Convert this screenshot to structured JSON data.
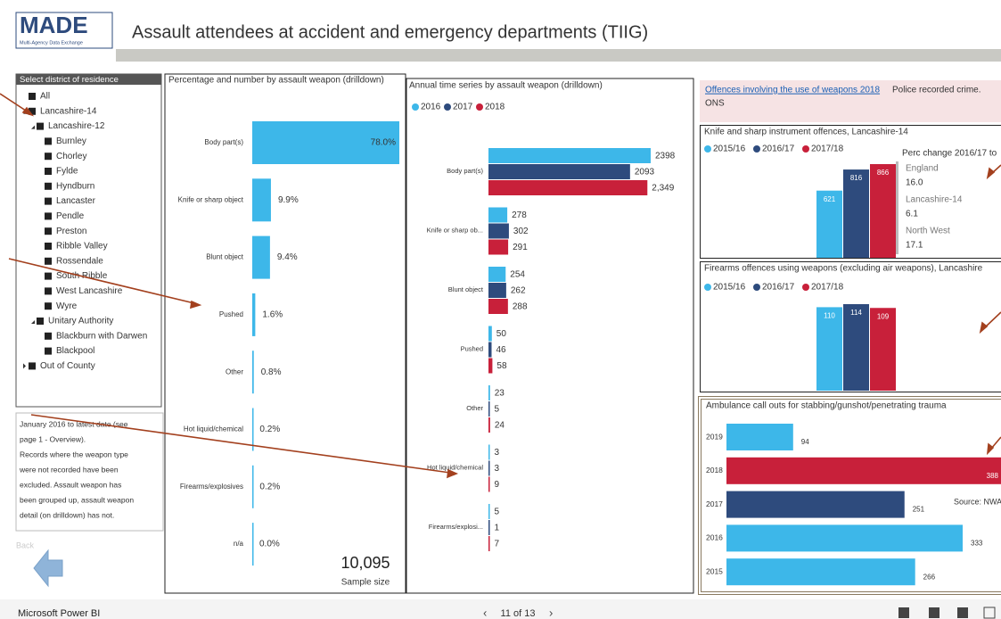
{
  "header": {
    "logo": "MADE",
    "logo_subtitle": "Multi-Agency Data Exchange",
    "title": "Assault attendees at accident and emergency departments (TIIG)"
  },
  "slicer": {
    "title": "Select district of residence",
    "items": [
      "All",
      "Lancashire-14",
      "Lancashire-12",
      "Burnley",
      "Chorley",
      "Fylde",
      "Hyndburn",
      "Lancaster",
      "Pendle",
      "Preston",
      "Ribble Valley",
      "Rossendale",
      "South Ribble",
      "West Lancashire",
      "Wyre",
      "Unitary Authority",
      "Blackburn with Darwen",
      "Blackpool",
      "Out of County"
    ]
  },
  "note": [
    "January 2016 to latest date (see",
    "page 1 - Overview).",
    "Records where the weapon type",
    "were not recorded have been",
    "excluded. Assault weapon  has",
    "been grouped up, assault weapon",
    "detail (on drilldown) has not."
  ],
  "back": "Back",
  "weapon_share": {
    "type": "bar",
    "title": "Percentage and number by assault weapon (drilldown)",
    "categories": [
      "Body part(s)",
      "Knife or sharp object",
      "Blunt object",
      "Pushed",
      "Other",
      "Hot liquid/chemical",
      "Firearms/explosives",
      "n/a"
    ],
    "values": [
      78.0,
      9.9,
      9.4,
      1.6,
      0.8,
      0.2,
      0.2,
      0.0
    ],
    "value_labels": [
      "78.0%",
      "9.9%",
      "9.4%",
      "1.6%",
      "0.8%",
      "0.2%",
      "0.2%",
      "0.0%"
    ],
    "color": "#3db7e9",
    "card": {
      "value": "10,095",
      "label": "Sample size"
    }
  },
  "time_series": {
    "type": "bar",
    "title": "Annual time series by assault weapon (drilldown)",
    "categories": [
      "Body part(s)",
      "Knife or sharp ob...",
      "Blunt object",
      "Pushed",
      "Other",
      "Hot liquid/chemical",
      "Firearms/explosi..."
    ],
    "series": [
      {
        "name": "2016",
        "color": "#3db7e9",
        "values": [
          2398,
          278,
          254,
          50,
          23,
          3,
          5
        ]
      },
      {
        "name": "2017",
        "color": "#2e4b7d",
        "values": [
          2093,
          302,
          262,
          46,
          5,
          3,
          1
        ]
      },
      {
        "name": "2018",
        "color": "#c8203a",
        "values": [
          2349,
          291,
          288,
          58,
          24,
          9,
          7
        ],
        "value_labels": [
          "2,349",
          "291",
          "288",
          "58",
          "24",
          "9",
          "7"
        ]
      }
    ]
  },
  "source": {
    "link": "Offences involving the use of weapons 2018",
    "text": "Police recorded crime.",
    "publisher": "ONS"
  },
  "knife": {
    "type": "bar",
    "title": "Knife and sharp instrument offences, Lancashire-14",
    "series": [
      {
        "name": "2015/16",
        "color": "#3db7e9",
        "values": [
          621
        ]
      },
      {
        "name": "2016/17",
        "color": "#2e4b7d",
        "values": [
          816
        ]
      },
      {
        "name": "2017/18",
        "color": "#c8203a",
        "values": [
          866
        ]
      }
    ],
    "perc_change": {
      "title": "Perc change 2016/17 to",
      "items": [
        {
          "area": "England",
          "value": "16.0"
        },
        {
          "area": "Lancashire-14",
          "value": "6.1"
        },
        {
          "area": "North West",
          "value": "17.1"
        }
      ]
    }
  },
  "firearms": {
    "type": "bar",
    "title": "Firearms offences using weapons (excluding air weapons), Lancashire",
    "series": [
      {
        "name": "2015/16",
        "color": "#3db7e9",
        "values": [
          110
        ]
      },
      {
        "name": "2016/17",
        "color": "#2e4b7d",
        "values": [
          114
        ]
      },
      {
        "name": "2017/18",
        "color": "#c8203a",
        "values": [
          109
        ]
      }
    ]
  },
  "ambulance": {
    "type": "bar",
    "title": "Ambulance call outs for stabbing/gunshot/penetrating trauma",
    "categories": [
      "2019",
      "2018",
      "2017",
      "2016",
      "2015"
    ],
    "values": [
      94,
      388,
      251,
      333,
      266
    ],
    "colors": [
      "#3db7e9",
      "#c8203a",
      "#2e4b7d",
      "#3db7e9",
      "#3db7e9"
    ],
    "source": "Source: NWA"
  },
  "footer": {
    "app": "Microsoft Power BI",
    "page": "11 of 13"
  }
}
